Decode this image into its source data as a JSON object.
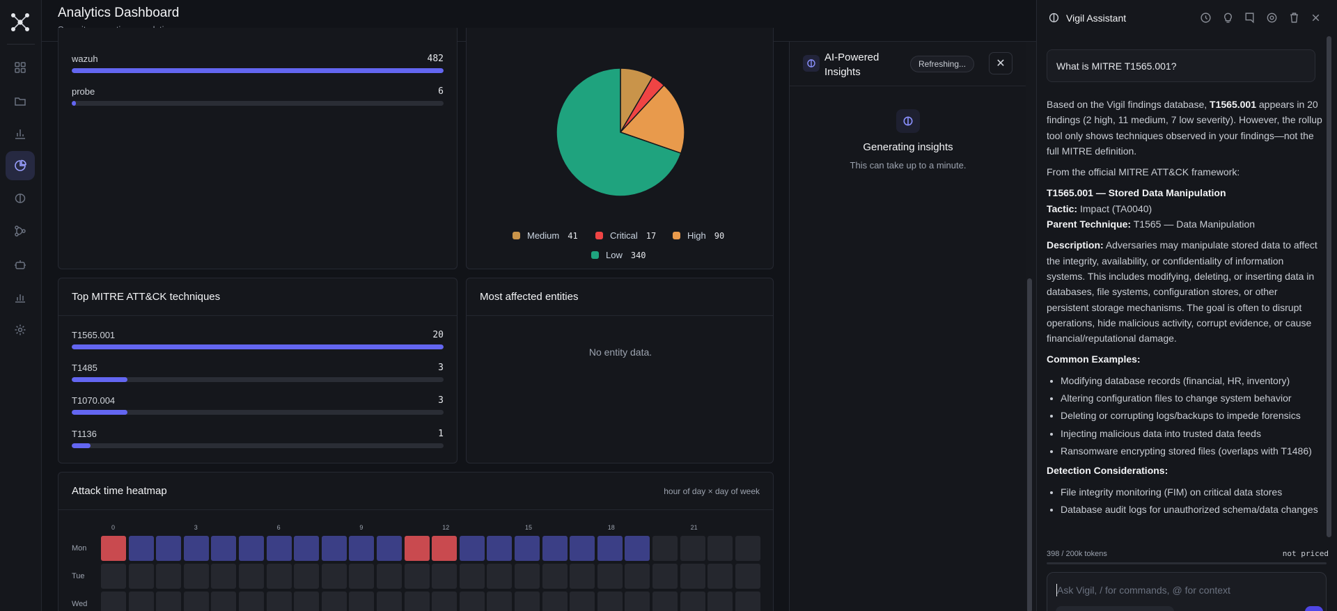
{
  "header": {
    "title": "Analytics Dashboard",
    "subtitle": "Security operations analytics"
  },
  "sidebar": {
    "items": [
      {
        "name": "dashboard-grid-icon",
        "active": false
      },
      {
        "name": "folder-icon",
        "active": false
      },
      {
        "name": "bar-chart-icon",
        "active": false
      },
      {
        "name": "pie-chart-icon",
        "active": true
      },
      {
        "name": "brain-icon",
        "active": false
      },
      {
        "name": "workflow-icon",
        "active": false
      },
      {
        "name": "bot-icon",
        "active": false
      },
      {
        "name": "stats-icon",
        "active": false
      },
      {
        "name": "settings-gear-icon",
        "active": false
      }
    ]
  },
  "sources": {
    "rows": [
      {
        "label": "wazuh",
        "value": "482",
        "fraction": 1.0
      },
      {
        "label": "probe",
        "value": "6",
        "fraction": 0.012
      }
    ]
  },
  "severity": {
    "legend": [
      {
        "label": "Medium",
        "value": "41",
        "color": "#c9944a"
      },
      {
        "label": "Critical",
        "value": "17",
        "color": "#ef4444"
      },
      {
        "label": "High",
        "value": "90",
        "color": "#e89a4c"
      },
      {
        "label": "Low",
        "value": "340",
        "color": "#1fa37e"
      }
    ]
  },
  "chart_data": {
    "type": "pie",
    "categories": [
      "Medium",
      "Critical",
      "High",
      "Low"
    ],
    "values": [
      41,
      17,
      90,
      340
    ],
    "colors": [
      "#c9944a",
      "#ef4444",
      "#e89a4c",
      "#1fa37e"
    ]
  },
  "mitre": {
    "title": "Top MITRE ATT&CK techniques",
    "rows": [
      {
        "label": "T1565.001",
        "value": "20",
        "fraction": 1.0
      },
      {
        "label": "T1485",
        "value": "3",
        "fraction": 0.15
      },
      {
        "label": "T1070.004",
        "value": "3",
        "fraction": 0.15
      },
      {
        "label": "T1136",
        "value": "1",
        "fraction": 0.05
      }
    ]
  },
  "entities": {
    "title": "Most affected entities",
    "empty": "No entity data."
  },
  "heatmap": {
    "title": "Attack time heatmap",
    "subtitle": "hour of day × day of week",
    "hour_labels": [
      "0",
      "3",
      "6",
      "9",
      "12",
      "15",
      "18",
      "21"
    ],
    "days": [
      "Mon",
      "Tue",
      "Wed"
    ],
    "cells": [
      [
        2,
        1,
        1,
        1,
        1,
        1,
        1,
        1,
        1,
        1,
        1,
        2,
        2,
        1,
        1,
        1,
        1,
        1,
        1,
        1,
        0,
        0,
        0,
        0
      ],
      [
        0,
        0,
        0,
        0,
        0,
        0,
        0,
        0,
        0,
        0,
        0,
        0,
        0,
        0,
        0,
        0,
        0,
        0,
        0,
        0,
        0,
        0,
        0,
        0
      ],
      [
        0,
        0,
        0,
        0,
        0,
        0,
        0,
        0,
        0,
        0,
        0,
        0,
        0,
        0,
        0,
        0,
        0,
        0,
        0,
        0,
        0,
        0,
        0,
        0
      ]
    ],
    "colors": {
      "empty": "#25272e",
      "activity": "#3b3f86",
      "peak": "#c94a4f"
    }
  },
  "insights": {
    "title": "AI-Powered Insights",
    "status": "Refreshing...",
    "generating_title": "Generating insights",
    "generating_sub": "This can take up to a minute."
  },
  "assistant": {
    "name": "Vigil Assistant",
    "question": "What is MITRE T1565.001?",
    "tokens": "398 / 200k tokens",
    "pricing": "not priced",
    "input_placeholder": "Ask Vigil, / for commands, @ for context",
    "answer": {
      "p1_a": "Based on the Vigil findings database, ",
      "p1_b": "T1565.001",
      "p1_c": " appears in 20 findings (2 high, 11 medium, 7 low severity). However, the rollup tool only shows techniques observed in your findings—not the full MITRE definition.",
      "p2": "From the official MITRE ATT&CK framework:",
      "h1": "T1565.001 — Stored Data Manipulation",
      "tactic_label": "Tactic:",
      "tactic_value": " Impact (TA0040)",
      "parent_label": "Parent Technique:",
      "parent_value": " T1565 — Data Manipulation",
      "desc_label": "Description:",
      "desc_value": " Adversaries may manipulate stored data to affect the integrity, availability, or confidentiality of information systems. This includes modifying, deleting, or inserting data in databases, file systems, configuration stores, or other persistent storage mechanisms. The goal is often to disrupt operations, hide malicious activity, corrupt evidence, or cause financial/reputational damage.",
      "examples_label": "Common Examples:",
      "examples": [
        "Modifying database records (financial, HR, inventory)",
        "Altering configuration files to change system behavior",
        "Deleting or corrupting logs/backups to impede forensics",
        "Injecting malicious data into trusted data feeds",
        "Ransomware encrypting stored files (overlaps with T1486)"
      ],
      "detection_label": "Detection Considerations:",
      "detection": [
        "File integrity monitoring (FIM) on critical data stores",
        "Database audit logs for unauthorized schema/data changes"
      ]
    }
  }
}
